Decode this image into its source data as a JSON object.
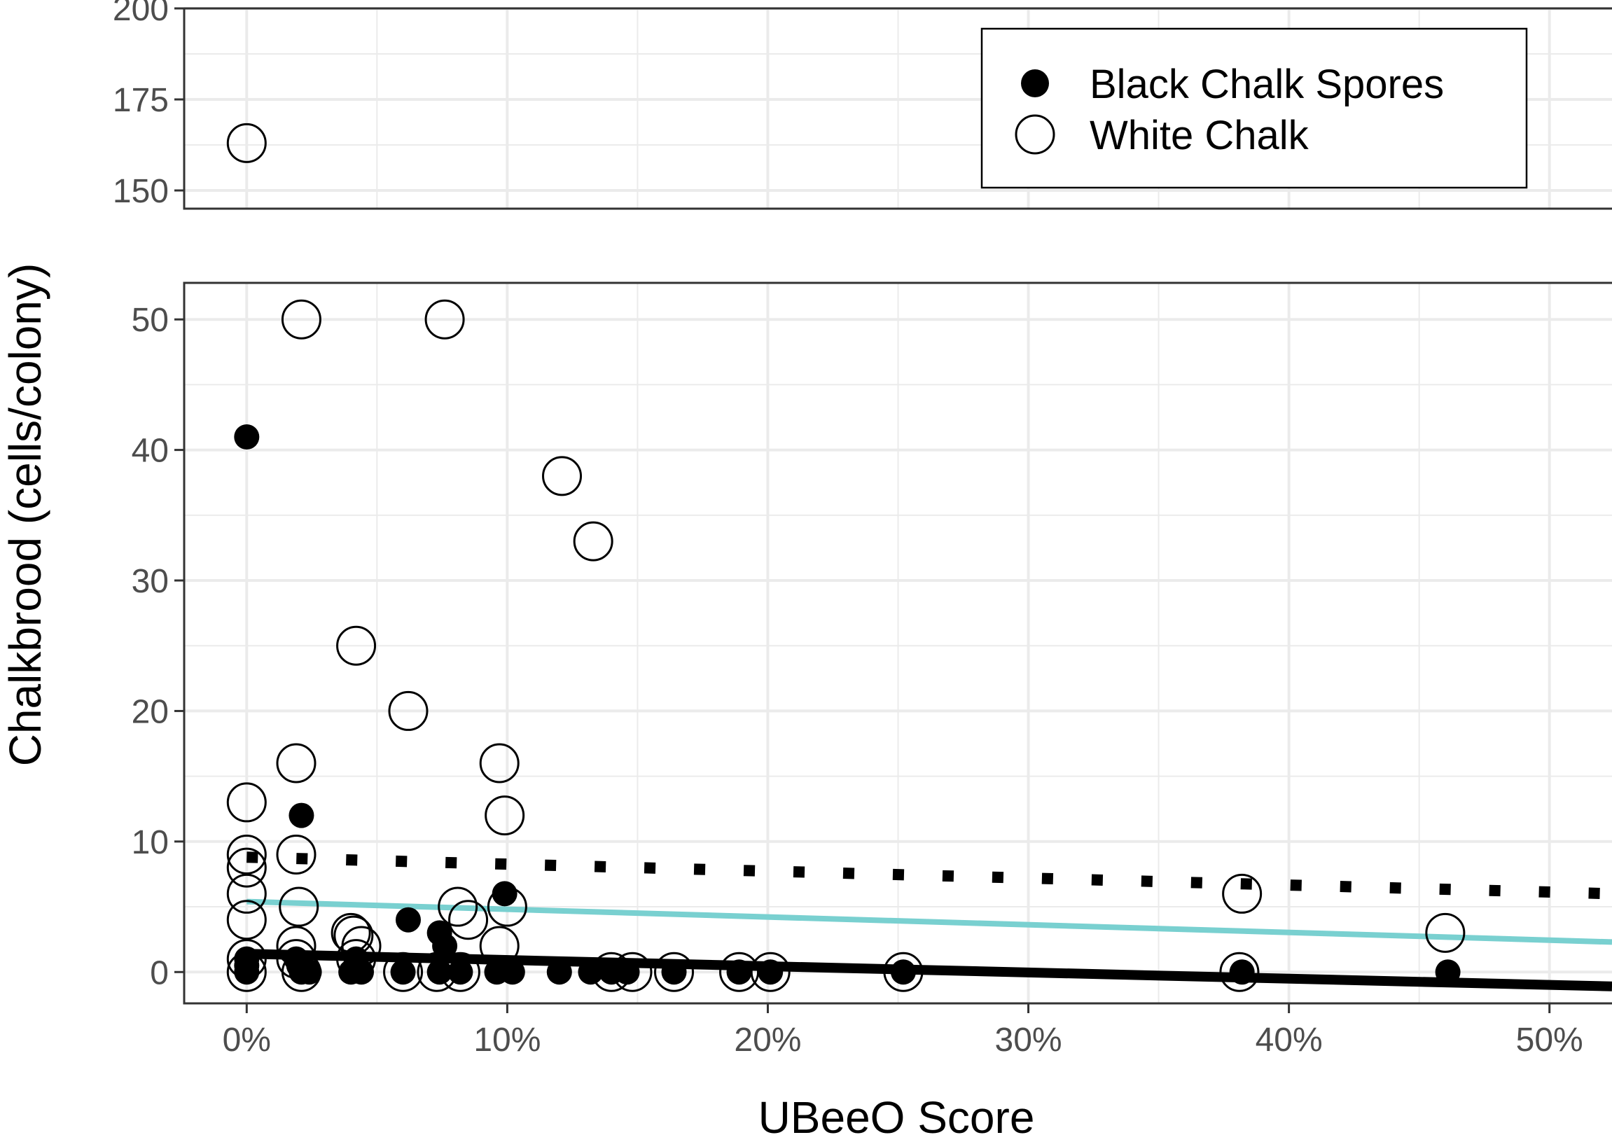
{
  "chart_data": {
    "type": "scatter",
    "title": "",
    "xlabel": "UBeeO Score",
    "ylabel": "Chalkbrood (cells/colony)",
    "x_tick_labels": [
      "0%",
      "10%",
      "20%",
      "30%",
      "40%",
      "50%"
    ],
    "x_ticks": [
      0,
      10,
      20,
      30,
      40,
      50
    ],
    "xlim": [
      -2.4,
      52.4
    ],
    "panels": [
      {
        "name": "upper",
        "ylim": [
          145,
          200
        ],
        "y_ticks": [
          150,
          175,
          200
        ],
        "y_tick_labels": [
          "150",
          "175",
          "200"
        ]
      },
      {
        "name": "lower",
        "ylim": [
          -2.4,
          52.8
        ],
        "y_ticks": [
          0,
          10,
          20,
          30,
          40,
          50
        ],
        "y_tick_labels": [
          "0",
          "10",
          "20",
          "30",
          "40",
          "50"
        ]
      }
    ],
    "legend": {
      "position": "top-right",
      "entries": [
        {
          "label": "Black Chalk Spores",
          "marker": "filled-circle"
        },
        {
          "label": "White Chalk",
          "marker": "open-circle"
        }
      ]
    },
    "series": [
      {
        "name": "Black Chalk Spores",
        "marker": "filled-circle",
        "color": "#000000",
        "points": [
          [
            0,
            41
          ],
          [
            2.1,
            12
          ],
          [
            6.2,
            4
          ],
          [
            7.4,
            3
          ],
          [
            7.6,
            2
          ],
          [
            9.9,
            6
          ],
          [
            0,
            1
          ],
          [
            0,
            0.5
          ],
          [
            0,
            0
          ],
          [
            1.9,
            1
          ],
          [
            2,
            0.5
          ],
          [
            2.1,
            0
          ],
          [
            2.4,
            0
          ],
          [
            4,
            0
          ],
          [
            4.2,
            1
          ],
          [
            4.4,
            0
          ],
          [
            6,
            0
          ],
          [
            7.4,
            0
          ],
          [
            8.2,
            0
          ],
          [
            9.6,
            0
          ],
          [
            10.2,
            0
          ],
          [
            12,
            0
          ],
          [
            13.2,
            0
          ],
          [
            14,
            0
          ],
          [
            14.6,
            0
          ],
          [
            16.4,
            0
          ],
          [
            18.9,
            0
          ],
          [
            20.1,
            0
          ],
          [
            25.2,
            0
          ],
          [
            38.2,
            0
          ],
          [
            46.1,
            0
          ]
        ]
      },
      {
        "name": "White Chalk",
        "marker": "open-circle",
        "color": "#000000",
        "upper_points": [
          [
            0,
            163
          ]
        ],
        "points": [
          [
            2.1,
            50
          ],
          [
            7.6,
            50
          ],
          [
            12.1,
            38
          ],
          [
            13.3,
            33
          ],
          [
            4.2,
            25
          ],
          [
            6.2,
            20
          ],
          [
            1.9,
            16
          ],
          [
            9.7,
            16
          ],
          [
            0,
            13
          ],
          [
            9.9,
            12
          ],
          [
            0,
            9
          ],
          [
            1.9,
            9
          ],
          [
            0,
            8
          ],
          [
            0,
            6
          ],
          [
            2,
            5
          ],
          [
            8.1,
            5
          ],
          [
            10,
            5
          ],
          [
            0,
            4
          ],
          [
            8.5,
            4
          ],
          [
            4,
            3
          ],
          [
            4.1,
            2.8
          ],
          [
            4.4,
            2
          ],
          [
            1.9,
            2
          ],
          [
            9.7,
            2
          ],
          [
            0,
            1
          ],
          [
            1.9,
            1
          ],
          [
            4.2,
            1
          ],
          [
            38.2,
            6
          ],
          [
            46,
            3
          ],
          [
            0,
            0
          ],
          [
            2.1,
            0
          ],
          [
            6,
            0
          ],
          [
            7.3,
            0
          ],
          [
            8.2,
            0
          ],
          [
            14,
            0
          ],
          [
            14.8,
            0
          ],
          [
            16.4,
            0
          ],
          [
            18.9,
            0
          ],
          [
            20.1,
            0
          ],
          [
            25.2,
            0
          ],
          [
            38.1,
            0
          ]
        ]
      }
    ],
    "fit_lines": [
      {
        "name": "overall-trend",
        "style": "dotted",
        "color": "#000000",
        "x": [
          0,
          52.4
        ],
        "y": [
          8.8,
          6.0
        ]
      },
      {
        "name": "white-chalk-trend",
        "style": "solid",
        "color": "#79d0d0",
        "x": [
          0,
          52.4
        ],
        "y": [
          5.4,
          2.3
        ]
      },
      {
        "name": "black-chalk-trend",
        "style": "solid-thick",
        "color": "#000000",
        "x": [
          0,
          52.4
        ],
        "y": [
          1.4,
          -1.1
        ]
      }
    ]
  }
}
